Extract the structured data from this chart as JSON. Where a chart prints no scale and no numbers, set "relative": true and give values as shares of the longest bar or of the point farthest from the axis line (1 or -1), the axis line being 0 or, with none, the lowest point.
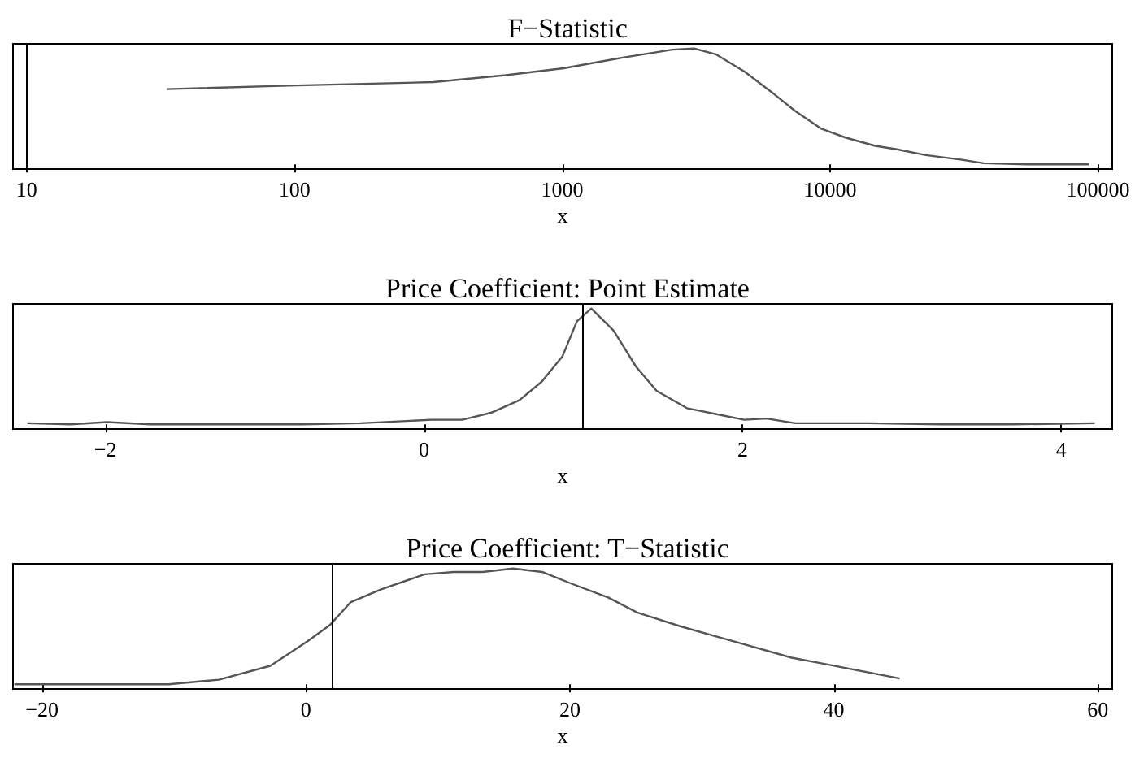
{
  "chart_data": [
    {
      "type": "line",
      "title": "F−Statistic",
      "xlabel": "x",
      "relative": true,
      "log": "x",
      "grid": false,
      "tick_labels": "x",
      "xlim": [
        8.9,
        113000
      ],
      "xticks": [
        10,
        100,
        1000,
        10000,
        100000
      ],
      "series": [
        {
          "color": "#555555",
          "x": [
            33.4,
            95,
            330,
            615,
            1012,
            1667,
            2576,
            3105,
            3741,
            4797,
            6151,
            7413,
            9226,
            11460,
            14720,
            17740,
            22750,
            31050,
            37410,
            54330,
            92270
          ],
          "values": [
            0.65,
            0.68,
            0.71,
            0.77,
            0.83,
            0.92,
            0.99,
            1,
            0.95,
            0.8,
            0.61,
            0.46,
            0.31,
            0.23,
            0.16,
            0.13,
            0.08,
            0.04,
            0.01,
            0,
            0
          ]
        }
      ],
      "ref_lines": [
        {
          "axis": "x",
          "value": 10,
          "color": "#000000"
        }
      ]
    },
    {
      "type": "line",
      "title": "Price Coefficient: Point Estimate",
      "xlabel": "x",
      "relative": true,
      "grid": false,
      "tick_labels": "x",
      "xlim": [
        -2.58,
        4.32
      ],
      "xticks": [
        {
          "value": -2,
          "label": "−2"
        },
        0,
        2,
        4
      ],
      "series": [
        {
          "color": "#555555",
          "x": [
            -2.49,
            -2.22,
            -1.99,
            -1.72,
            -1.31,
            -0.76,
            -0.4,
            0.05,
            0.24,
            0.42,
            0.6,
            0.74,
            0.87,
            0.96,
            1.05,
            1.19,
            1.33,
            1.46,
            1.65,
            1.83,
            2.01,
            2.15,
            2.33,
            2.78,
            3.24,
            3.69,
            4.21
          ],
          "values": [
            0.01,
            0,
            0.02,
            0,
            0,
            0,
            0.01,
            0.04,
            0.04,
            0.1,
            0.21,
            0.37,
            0.59,
            0.89,
            1,
            0.81,
            0.5,
            0.29,
            0.14,
            0.09,
            0.04,
            0.05,
            0.01,
            0.01,
            0,
            0,
            0.01
          ]
        }
      ],
      "ref_lines": [
        {
          "axis": "x",
          "value": 1,
          "color": "#000000"
        }
      ]
    },
    {
      "type": "line",
      "title": "Price Coefficient: T−Statistic",
      "xlabel": "x",
      "relative": true,
      "grid": false,
      "tick_labels": "x",
      "xlim": [
        -22.2,
        61.1
      ],
      "xticks": [
        {
          "value": -20,
          "label": "−20"
        },
        0,
        20,
        40,
        60
      ],
      "series": [
        {
          "color": "#555555",
          "x": [
            -22.1,
            -16,
            -10.4,
            -6.6,
            -2.7,
            0.1,
            1.8,
            3.4,
            5.7,
            9,
            11.2,
            13.4,
            15.7,
            17.9,
            20.1,
            22.9,
            25.1,
            28.4,
            31.2,
            33.4,
            36.8,
            39.6,
            42.3,
            45
          ],
          "values": [
            0,
            0,
            0,
            0.04,
            0.16,
            0.37,
            0.51,
            0.71,
            0.82,
            0.95,
            0.97,
            0.97,
            1,
            0.97,
            0.87,
            0.75,
            0.62,
            0.5,
            0.41,
            0.34,
            0.23,
            0.17,
            0.11,
            0.05
          ]
        }
      ],
      "ref_lines": [
        {
          "axis": "x",
          "value": 2,
          "color": "#000000"
        }
      ]
    }
  ]
}
